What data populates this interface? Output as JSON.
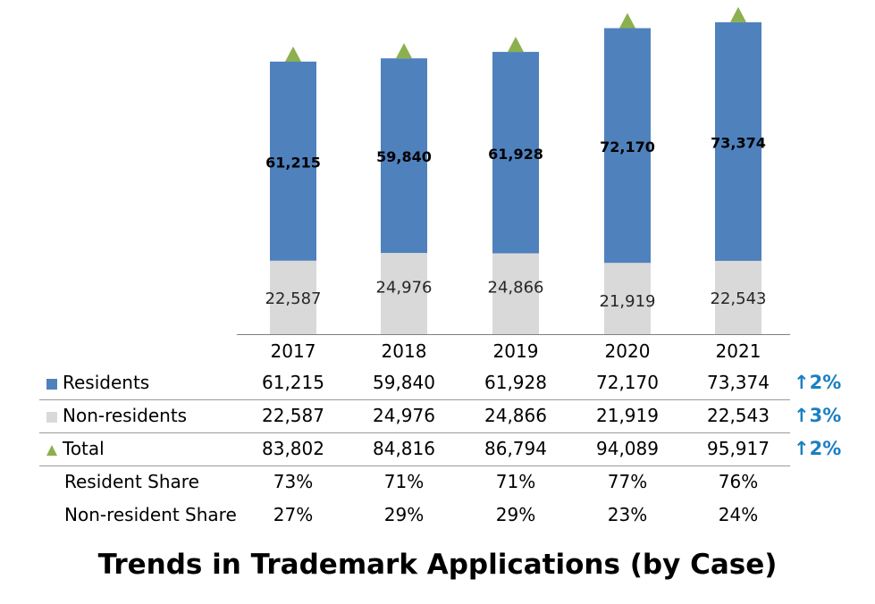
{
  "chart_data": {
    "type": "bar",
    "stacked": true,
    "title": "Trends in Trademark Applications (by Case)",
    "categories": [
      "2017",
      "2018",
      "2019",
      "2020",
      "2021"
    ],
    "ylim": [
      0,
      100000
    ],
    "series": [
      {
        "name": "Non-residents",
        "values": [
          22587,
          24976,
          24866,
          21919,
          22543
        ],
        "color": "#d9d9d9",
        "labels": [
          "22,587",
          "24,976",
          "24,866",
          "21,919",
          "22,543"
        ]
      },
      {
        "name": "Residents",
        "values": [
          61215,
          59840,
          61928,
          72170,
          73374
        ],
        "color": "#4f81bd",
        "labels": [
          "61,215",
          "59,840",
          "61,928",
          "72,170",
          "73,374"
        ]
      },
      {
        "name": "Total",
        "values": [
          83802,
          84816,
          86794,
          94089,
          95917
        ],
        "color": "#8cb04d",
        "marker": "triangle"
      }
    ],
    "table": {
      "rows": [
        {
          "label": "Residents",
          "marker": "square",
          "color": "#4f81bd",
          "cells": [
            "61,215",
            "59,840",
            "61,928",
            "72,170",
            "73,374"
          ],
          "growth": "2%"
        },
        {
          "label": "Non-residents",
          "marker": "square",
          "color": "#d9d9d9",
          "cells": [
            "22,587",
            "24,976",
            "24,866",
            "21,919",
            "22,543"
          ],
          "growth": "3%"
        },
        {
          "label": "Total",
          "marker": "triangle",
          "color": "#8cb04d",
          "cells": [
            "83,802",
            "84,816",
            "86,794",
            "94,089",
            "95,917"
          ],
          "growth": "2%"
        },
        {
          "label": "Resident Share",
          "marker": "",
          "color": "",
          "cells": [
            "73%",
            "71%",
            "71%",
            "77%",
            "76%"
          ],
          "growth": ""
        },
        {
          "label": "Non-resident Share",
          "marker": "",
          "color": "",
          "cells": [
            "27%",
            "29%",
            "29%",
            "23%",
            "24%"
          ],
          "growth": ""
        }
      ],
      "growth_color": "#1a7fc2",
      "growth_icon": "up-arrow-icon"
    }
  }
}
